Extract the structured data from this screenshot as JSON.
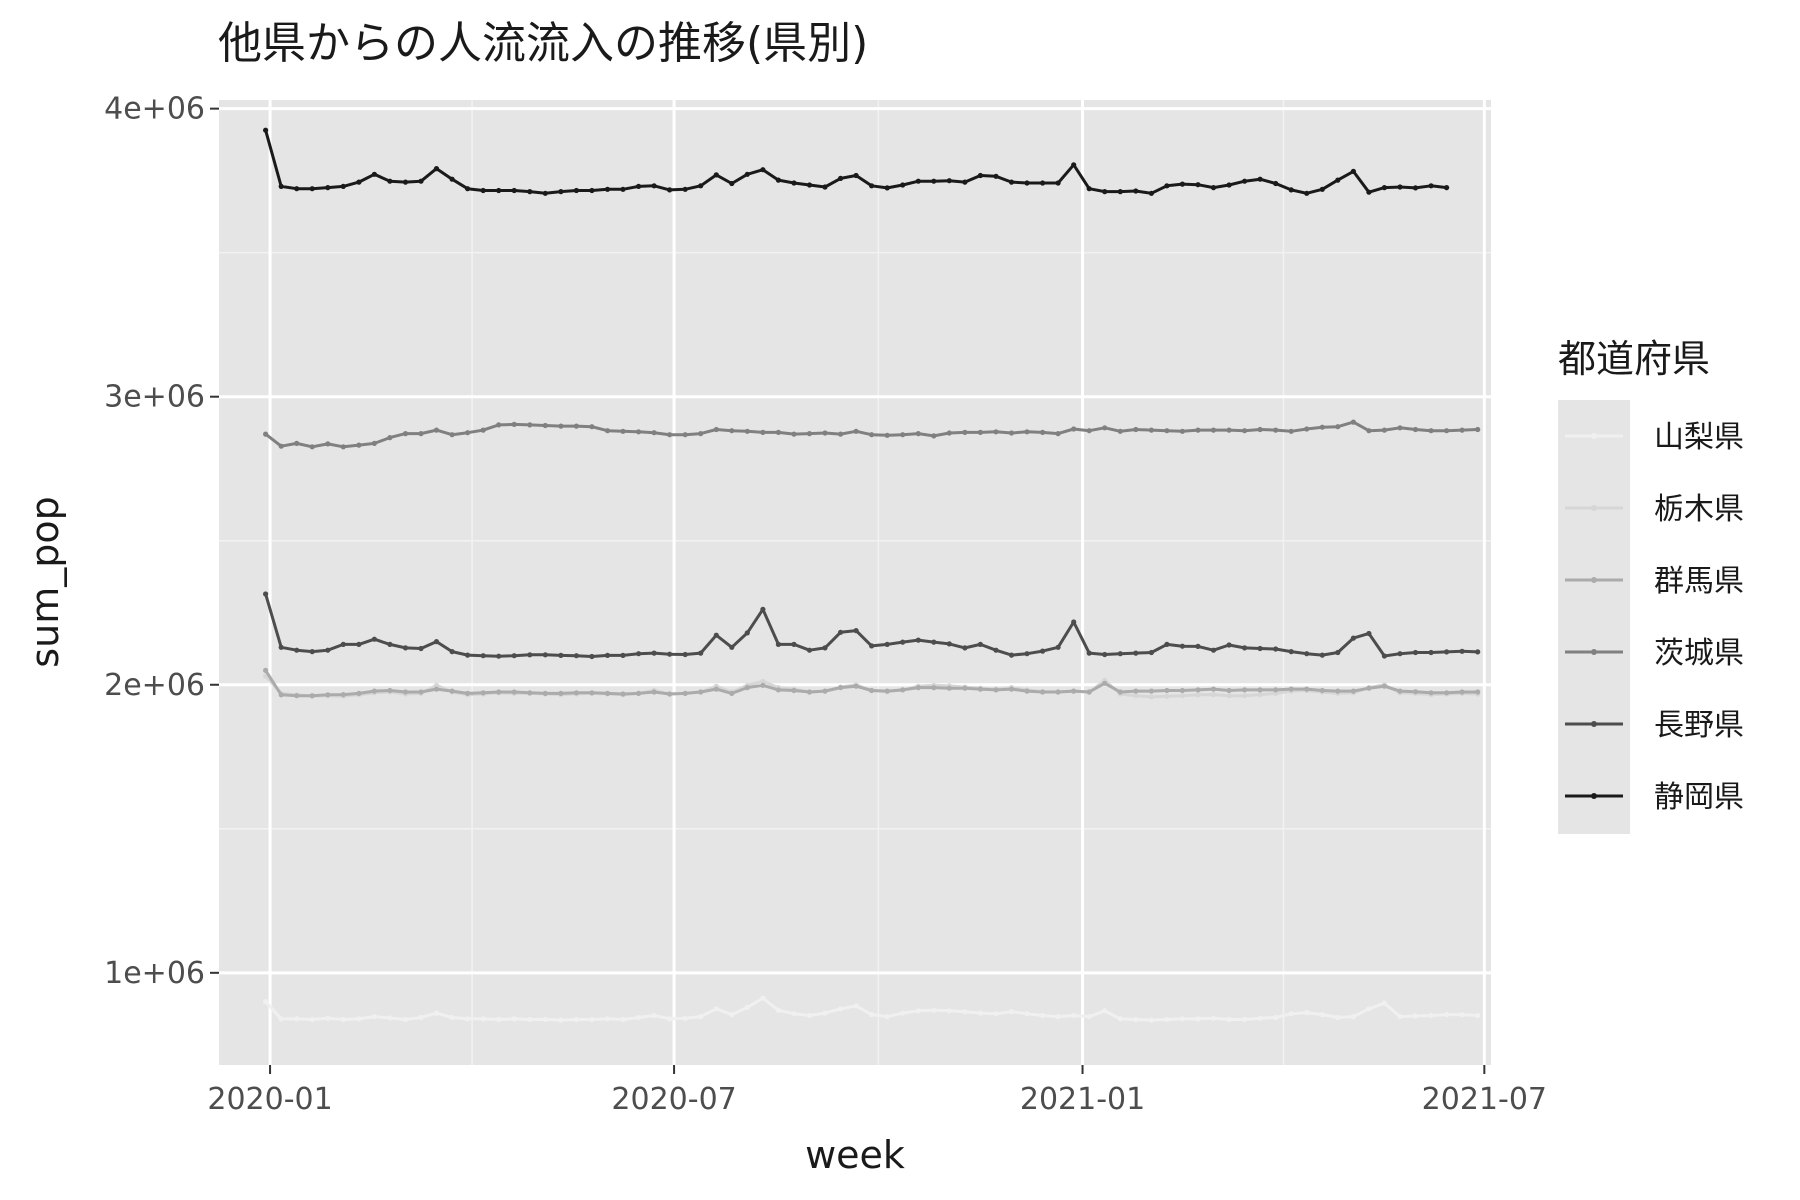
{
  "chart_data": {
    "type": "line",
    "title": "他県からの人流流入の推移(県別)",
    "xlabel": "week",
    "ylabel": "sum_pop",
    "x_tick_labels": [
      "2020-01",
      "2020-07",
      "2021-01",
      "2021-07"
    ],
    "x_tick_dates": [
      "2020-01-01",
      "2020-07-01",
      "2021-01-01",
      "2021-07-01"
    ],
    "y_tick_labels": [
      "1e+06",
      "2e+06",
      "3e+06",
      "4e+06"
    ],
    "y_ticks": [
      1000000,
      2000000,
      3000000,
      4000000
    ],
    "xlim": [
      "2019-12-09",
      "2021-07-04"
    ],
    "ylim": [
      680000,
      4030000
    ],
    "grid": true,
    "legend_title": "都道府県",
    "legend_position": "right",
    "x_start_date": "2019-12-30",
    "x_step_days": 7,
    "series": [
      {
        "name": "山梨県",
        "color": "#f0f0f0",
        "values": [
          900000,
          840000,
          840000,
          838000,
          842000,
          838000,
          840000,
          848000,
          843000,
          838000,
          845000,
          860000,
          845000,
          840000,
          840000,
          838000,
          840000,
          838000,
          838000,
          836000,
          838000,
          838000,
          840000,
          838000,
          845000,
          852000,
          840000,
          842000,
          848000,
          875000,
          855000,
          880000,
          912000,
          870000,
          858000,
          852000,
          860000,
          875000,
          885000,
          855000,
          848000,
          860000,
          868000,
          870000,
          868000,
          865000,
          860000,
          858000,
          865000,
          858000,
          852000,
          848000,
          852000,
          848000,
          868000,
          840000,
          838000,
          836000,
          838000,
          840000,
          840000,
          842000,
          838000,
          838000,
          842000,
          845000,
          858000,
          862000,
          855000,
          845000,
          848000,
          875000,
          895000,
          848000,
          850000,
          852000,
          855000,
          855000,
          852000
        ]
      },
      {
        "name": "栃木県",
        "color": "#d6d6d6",
        "values": [
          2030000,
          1970000,
          1965000,
          1960000,
          1962000,
          1960000,
          1965000,
          1972000,
          1975000,
          1968000,
          1970000,
          1998000,
          1975000,
          1965000,
          1968000,
          1972000,
          1970000,
          1970000,
          1968000,
          1966000,
          1968000,
          1970000,
          1968000,
          1966000,
          1970000,
          1980000,
          1968000,
          1970000,
          1975000,
          1995000,
          1975000,
          1998000,
          2012000,
          1990000,
          1985000,
          1975000,
          1978000,
          1992000,
          2000000,
          1980000,
          1976000,
          1982000,
          1995000,
          1998000,
          1996000,
          1992000,
          1988000,
          1985000,
          1990000,
          1982000,
          1976000,
          1975000,
          1978000,
          1975000,
          2015000,
          1968000,
          1962000,
          1958000,
          1960000,
          1962000,
          1965000,
          1966000,
          1962000,
          1962000,
          1966000,
          1970000,
          1978000,
          1980000,
          1975000,
          1970000,
          1972000,
          1990000,
          2000000,
          1972000,
          1970000,
          1966000,
          1968000,
          1970000,
          1968000
        ]
      },
      {
        "name": "群馬県",
        "color": "#ababab",
        "values": [
          2050000,
          1965000,
          1962000,
          1962000,
          1965000,
          1966000,
          1970000,
          1978000,
          1980000,
          1975000,
          1975000,
          1985000,
          1978000,
          1970000,
          1972000,
          1975000,
          1975000,
          1972000,
          1970000,
          1970000,
          1972000,
          1972000,
          1970000,
          1968000,
          1970000,
          1975000,
          1968000,
          1970000,
          1975000,
          1985000,
          1970000,
          1990000,
          1998000,
          1982000,
          1980000,
          1975000,
          1978000,
          1990000,
          1995000,
          1980000,
          1978000,
          1982000,
          1990000,
          1990000,
          1988000,
          1988000,
          1985000,
          1982000,
          1985000,
          1978000,
          1975000,
          1975000,
          1978000,
          1975000,
          2005000,
          1975000,
          1978000,
          1978000,
          1980000,
          1980000,
          1982000,
          1985000,
          1980000,
          1982000,
          1982000,
          1982000,
          1985000,
          1985000,
          1980000,
          1978000,
          1978000,
          1988000,
          1995000,
          1978000,
          1976000,
          1972000,
          1972000,
          1975000,
          1975000
        ]
      },
      {
        "name": "茨城県",
        "color": "#808080",
        "values": [
          2870000,
          2828000,
          2838000,
          2826000,
          2836000,
          2826000,
          2832000,
          2838000,
          2858000,
          2872000,
          2872000,
          2884000,
          2868000,
          2875000,
          2884000,
          2902000,
          2904000,
          2902000,
          2900000,
          2898000,
          2898000,
          2896000,
          2882000,
          2880000,
          2878000,
          2875000,
          2868000,
          2868000,
          2872000,
          2886000,
          2882000,
          2880000,
          2876000,
          2876000,
          2870000,
          2872000,
          2874000,
          2870000,
          2880000,
          2868000,
          2866000,
          2868000,
          2872000,
          2864000,
          2874000,
          2876000,
          2876000,
          2878000,
          2874000,
          2878000,
          2876000,
          2872000,
          2888000,
          2882000,
          2892000,
          2880000,
          2886000,
          2884000,
          2882000,
          2880000,
          2884000,
          2884000,
          2884000,
          2882000,
          2886000,
          2884000,
          2880000,
          2888000,
          2894000,
          2896000,
          2912000,
          2882000,
          2884000,
          2892000,
          2886000,
          2882000,
          2882000,
          2884000,
          2886000
        ]
      },
      {
        "name": "長野県",
        "color": "#4d4d4d",
        "values": [
          2315000,
          2130000,
          2120000,
          2115000,
          2120000,
          2140000,
          2140000,
          2158000,
          2140000,
          2128000,
          2126000,
          2150000,
          2115000,
          2103000,
          2101000,
          2099000,
          2101000,
          2104000,
          2104000,
          2102000,
          2101000,
          2098000,
          2102000,
          2102000,
          2108000,
          2110000,
          2106000,
          2105000,
          2110000,
          2172000,
          2130000,
          2180000,
          2262000,
          2140000,
          2140000,
          2120000,
          2128000,
          2182000,
          2188000,
          2135000,
          2140000,
          2148000,
          2155000,
          2148000,
          2142000,
          2128000,
          2140000,
          2120000,
          2103000,
          2108000,
          2117000,
          2130000,
          2218000,
          2110000,
          2105000,
          2108000,
          2110000,
          2112000,
          2140000,
          2134000,
          2133000,
          2120000,
          2138000,
          2128000,
          2126000,
          2124000,
          2115000,
          2108000,
          2103000,
          2112000,
          2162000,
          2178000,
          2100000,
          2108000,
          2112000,
          2112000,
          2114000,
          2116000,
          2114000
        ]
      },
      {
        "name": "静岡県",
        "color": "#1a1a1a",
        "values": [
          3925000,
          3730000,
          3722000,
          3722000,
          3726000,
          3730000,
          3745000,
          3772000,
          3748000,
          3745000,
          3748000,
          3792000,
          3755000,
          3722000,
          3716000,
          3716000,
          3716000,
          3712000,
          3706000,
          3712000,
          3716000,
          3716000,
          3720000,
          3720000,
          3730000,
          3732000,
          3718000,
          3720000,
          3732000,
          3770000,
          3740000,
          3772000,
          3788000,
          3752000,
          3742000,
          3735000,
          3728000,
          3758000,
          3768000,
          3732000,
          3725000,
          3735000,
          3748000,
          3748000,
          3750000,
          3745000,
          3768000,
          3765000,
          3745000,
          3742000,
          3742000,
          3742000,
          3805000,
          3722000,
          3712000,
          3712000,
          3714000,
          3706000,
          3732000,
          3738000,
          3736000,
          3726000,
          3735000,
          3748000,
          3755000,
          3740000,
          3718000,
          3706000,
          3720000,
          3752000,
          3782000,
          3710000,
          3726000,
          3728000,
          3725000,
          3732000,
          3726000
        ]
      }
    ]
  }
}
